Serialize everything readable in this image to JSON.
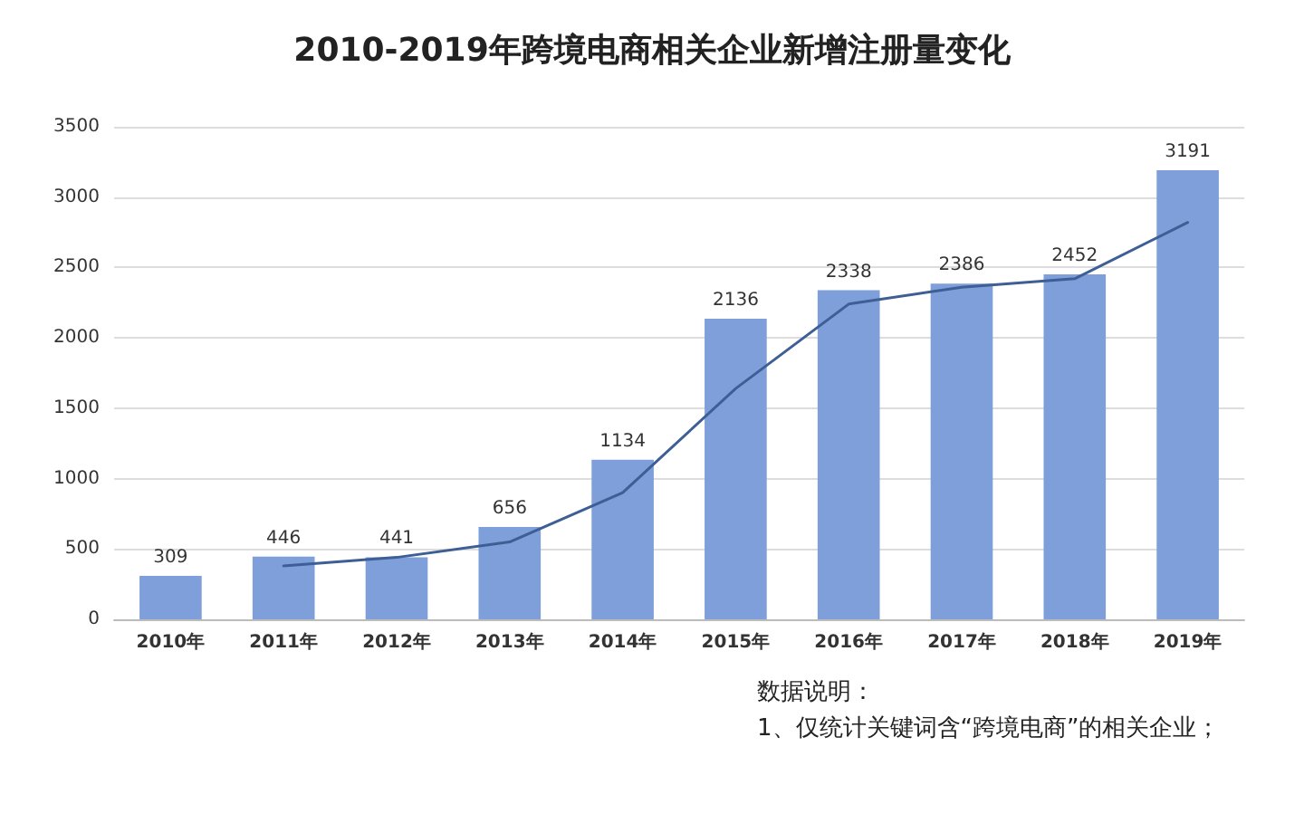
{
  "chart_data": {
    "type": "bar",
    "title": "2010-2019年跨境电商相关企业新增注册量变化",
    "categories": [
      "2010年",
      "2011年",
      "2012年",
      "2013年",
      "2014年",
      "2015年",
      "2016年",
      "2017年",
      "2018年",
      "2019年"
    ],
    "series": [
      {
        "color": "#7e9fda",
        "values": [
          309,
          446,
          441,
          656,
          1134,
          2136,
          2338,
          2386,
          2452,
          3191
        ],
        "data_labels": true
      },
      {
        "type": "line",
        "color": "#3e5f95",
        "values": [
          null,
          380,
          440,
          550,
          900,
          1640,
          2240,
          2360,
          2420,
          2820
        ]
      }
    ],
    "ylim": [
      0,
      3500
    ],
    "yticks": [
      0,
      500,
      1000,
      1500,
      2000,
      2500,
      3000,
      3500
    ],
    "grid": "y",
    "marker": "none",
    "line_style": "solid",
    "annotations": [
      "数据说明：",
      "1、仅统计关键词含“跨境电商”的相关企业；"
    ]
  }
}
